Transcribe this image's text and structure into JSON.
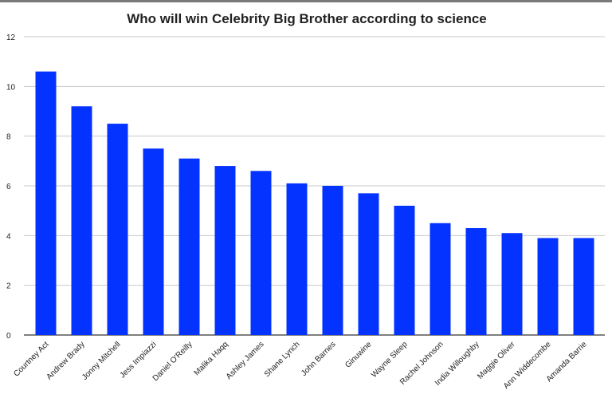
{
  "chart_data": {
    "type": "bar",
    "title": "Who will win Celebrity Big Brother according to science",
    "xlabel": "",
    "ylabel": "",
    "categories": [
      "Courtney Act",
      "Andrew Brady",
      "Jonny Mitchell",
      "Jess Impiazzi",
      "Daniel O'Reilly",
      "Malika Haqq",
      "Ashley James",
      "Shane Lynch",
      "John Barnes",
      "Ginuwine",
      "Wayne Sleep",
      "Rachel Johnson",
      "India Willoughby",
      "Maggie Oliver",
      "Ann Widdecombe",
      "Amanda Barrie"
    ],
    "values": [
      10.6,
      9.2,
      8.5,
      7.5,
      7.1,
      6.8,
      6.6,
      6.1,
      6.0,
      5.7,
      5.2,
      4.5,
      4.3,
      4.1,
      3.9,
      3.9
    ],
    "ylim": [
      0,
      12
    ],
    "yticks": [
      0,
      2,
      4,
      6,
      8,
      10,
      12
    ],
    "grid": true,
    "legend": "none",
    "bar_color": "#0433ff"
  }
}
